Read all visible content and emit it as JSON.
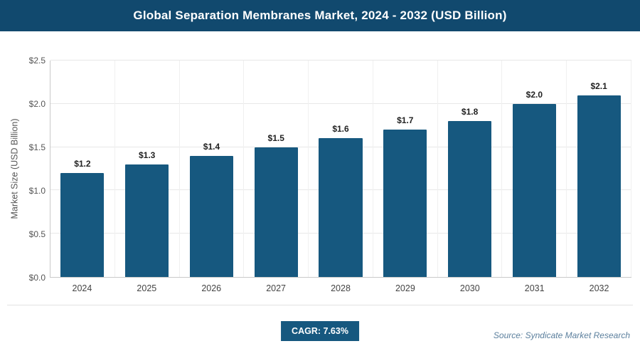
{
  "header": {
    "title": "Global Separation Membranes Market, 2024 - 2032 (USD Billion)"
  },
  "footer": {
    "cagr_label": "CAGR: 7.63%",
    "source": "Source: Syndicate Market Research"
  },
  "colors": {
    "header_bg": "#11496e",
    "bar": "#16587f",
    "badge_bg": "#16587f"
  },
  "chart_data": {
    "type": "bar",
    "title": "Global Separation Membranes Market, 2024 - 2032 (USD Billion)",
    "categories": [
      "2024",
      "2025",
      "2026",
      "2027",
      "2028",
      "2029",
      "2030",
      "2031",
      "2032"
    ],
    "values": [
      1.2,
      1.3,
      1.4,
      1.5,
      1.6,
      1.7,
      1.8,
      2.0,
      2.1
    ],
    "bar_labels": [
      "$1.2",
      "$1.3",
      "$1.4",
      "$1.5",
      "$1.6",
      "$1.7",
      "$1.8",
      "$2.0",
      "$2.1"
    ],
    "xlabel": "",
    "ylabel": "Market Size (USD Billion)",
    "ylim": [
      0,
      2.5
    ],
    "yticks": [
      "$0.0",
      "$0.5",
      "$1.0",
      "$1.5",
      "$2.0",
      "$2.5"
    ],
    "ytick_values": [
      0,
      0.5,
      1.0,
      1.5,
      2.0,
      2.5
    ],
    "grid": true,
    "legend": false,
    "bar_color": "#16587f"
  }
}
